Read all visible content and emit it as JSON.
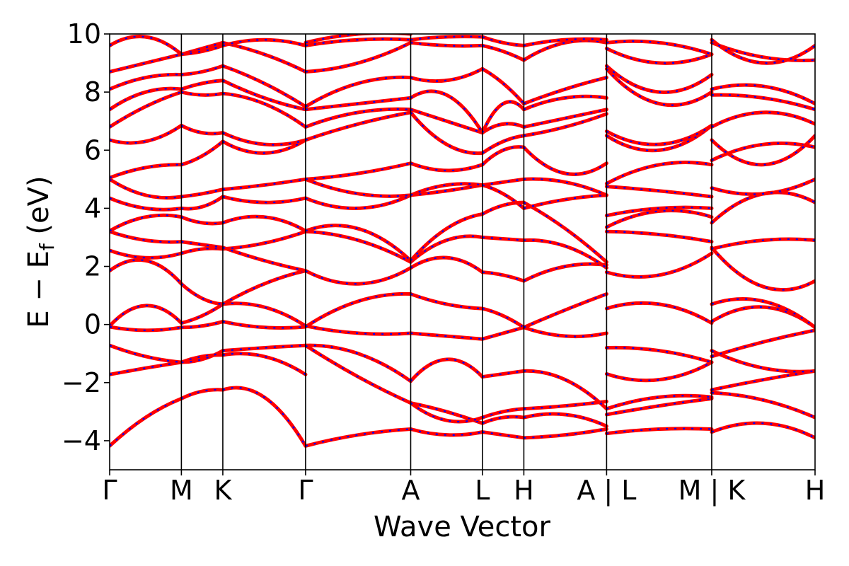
{
  "chart_data": {
    "type": "line",
    "title": "",
    "xlabel": "Wave Vector",
    "ylabel_parts": {
      "pre": "E − E",
      "sub": "f",
      "post": " (eV)"
    },
    "ylim": [
      -5,
      10
    ],
    "yticks": [
      -4,
      -2,
      0,
      2,
      4,
      6,
      8,
      10
    ],
    "ytick_labels": [
      "−4",
      "−2",
      "0",
      "2",
      "4",
      "6",
      "8",
      "10"
    ],
    "grid": false,
    "legend": "none",
    "colors": {
      "band_main": "#ff0000",
      "band_overlay": "#0000ff"
    },
    "high_symmetry_points": [
      {
        "label": "Γ",
        "x": 0.0
      },
      {
        "label": "M",
        "x": 0.722
      },
      {
        "label": "K",
        "x": 1.139
      },
      {
        "label": "Γ",
        "x": 1.972
      },
      {
        "label": "A",
        "x": 3.03
      },
      {
        "label": "L",
        "x": 3.752
      },
      {
        "label": "H",
        "x": 4.169
      },
      {
        "label": "A | L",
        "x": 5.002
      },
      {
        "label": "M | K",
        "x": 6.06
      },
      {
        "label": "H",
        "x": 7.1
      }
    ],
    "band_segments": [
      {
        "from": "Γ",
        "to": "M",
        "bands": [
          [
            -4.18,
            -3.2,
            -2.55
          ],
          [
            -1.72,
            -1.5,
            -1.3
          ],
          [
            -0.72,
            -1.1,
            -1.3
          ],
          [
            -0.05,
            0.65,
            0.05
          ],
          [
            -0.08,
            -0.2,
            -0.1
          ],
          [
            1.85,
            2.2,
            1.4
          ],
          [
            2.55,
            2.3,
            2.45
          ],
          [
            3.2,
            2.9,
            2.85
          ],
          [
            3.22,
            3.7,
            3.7
          ],
          [
            4.35,
            4.0,
            4.0
          ],
          [
            5.0,
            4.45,
            4.4
          ],
          [
            5.05,
            5.4,
            5.5
          ],
          [
            6.35,
            6.3,
            6.85
          ],
          [
            6.8,
            7.5,
            8.0
          ],
          [
            7.4,
            8.0,
            8.1
          ],
          [
            8.1,
            8.5,
            8.6
          ],
          [
            8.7,
            9.0,
            9.3
          ],
          [
            9.6,
            9.9,
            9.3
          ]
        ]
      },
      {
        "from": "M",
        "to": "K",
        "bands": [
          [
            -2.55,
            -2.3,
            -2.25
          ],
          [
            -1.3,
            -1.1,
            -1.05
          ],
          [
            -1.3,
            -1.2,
            -0.9
          ],
          [
            0.05,
            0.3,
            0.7
          ],
          [
            -0.1,
            -0.05,
            0.1
          ],
          [
            1.4,
            0.9,
            0.7
          ],
          [
            2.45,
            2.6,
            2.6
          ],
          [
            2.85,
            2.75,
            2.65
          ],
          [
            3.7,
            3.5,
            3.5
          ],
          [
            4.0,
            4.05,
            4.4
          ],
          [
            4.4,
            4.5,
            4.65
          ],
          [
            5.5,
            5.8,
            6.3
          ],
          [
            6.85,
            6.6,
            6.6
          ],
          [
            8.0,
            7.9,
            7.95
          ],
          [
            8.1,
            8.3,
            8.4
          ],
          [
            8.6,
            8.7,
            8.9
          ],
          [
            9.3,
            9.5,
            9.7
          ],
          [
            9.3,
            9.4,
            9.6
          ]
        ]
      },
      {
        "from": "K",
        "to": "Γ",
        "bands": [
          [
            -2.25,
            -2.5,
            -4.18
          ],
          [
            -1.05,
            -1.1,
            -1.72
          ],
          [
            -0.9,
            -0.8,
            -0.72
          ],
          [
            0.7,
            0.6,
            -0.05
          ],
          [
            0.1,
            -0.1,
            -0.08
          ],
          [
            0.7,
            1.4,
            1.85
          ],
          [
            2.6,
            2.8,
            3.2
          ],
          [
            2.65,
            2.2,
            1.85
          ],
          [
            3.5,
            3.7,
            3.22
          ],
          [
            4.4,
            4.2,
            4.35
          ],
          [
            4.65,
            4.8,
            5.0
          ],
          [
            6.3,
            5.9,
            6.35
          ],
          [
            6.6,
            6.2,
            6.35
          ],
          [
            7.95,
            7.6,
            6.8
          ],
          [
            8.4,
            7.8,
            7.4
          ],
          [
            8.9,
            8.3,
            7.5
          ],
          [
            9.7,
            9.3,
            8.7
          ],
          [
            9.6,
            9.8,
            9.6
          ]
        ]
      },
      {
        "from": "Γ",
        "to": "A",
        "bands": [
          [
            -4.18,
            -3.8,
            -3.6
          ],
          [
            -0.72,
            -1.0,
            -1.95
          ],
          [
            -0.72,
            -1.8,
            -2.7
          ],
          [
            -0.05,
            -0.3,
            -0.3
          ],
          [
            -0.08,
            0.8,
            1.05
          ],
          [
            1.85,
            1.4,
            1.95
          ],
          [
            3.2,
            2.9,
            2.15
          ],
          [
            3.22,
            3.3,
            2.2
          ],
          [
            4.35,
            4.0,
            4.45
          ],
          [
            5.0,
            4.5,
            4.45
          ],
          [
            5.0,
            5.2,
            5.55
          ],
          [
            6.35,
            6.9,
            7.3
          ],
          [
            6.8,
            7.3,
            7.4
          ],
          [
            7.4,
            7.6,
            7.8
          ],
          [
            7.5,
            8.3,
            8.5
          ],
          [
            8.7,
            9.0,
            9.7
          ],
          [
            9.6,
            9.8,
            9.8
          ],
          [
            9.7,
            10.0,
            10.0
          ]
        ]
      },
      {
        "from": "A",
        "to": "L",
        "bands": [
          [
            -3.6,
            -3.8,
            -3.7
          ],
          [
            -2.7,
            -3.0,
            -3.4
          ],
          [
            -2.7,
            -3.3,
            -3.2
          ],
          [
            -1.95,
            -1.2,
            -1.8
          ],
          [
            -0.3,
            -0.4,
            -0.5
          ],
          [
            1.05,
            0.7,
            0.55
          ],
          [
            1.95,
            2.3,
            1.8
          ],
          [
            2.15,
            2.9,
            3.0
          ],
          [
            2.2,
            3.3,
            3.8
          ],
          [
            4.45,
            4.6,
            4.8
          ],
          [
            4.45,
            4.8,
            4.8
          ],
          [
            5.55,
            5.3,
            5.5
          ],
          [
            7.3,
            6.2,
            5.9
          ],
          [
            7.4,
            7.0,
            6.6
          ],
          [
            7.8,
            7.9,
            6.6
          ],
          [
            8.5,
            8.4,
            8.8
          ],
          [
            9.7,
            9.6,
            9.6
          ],
          [
            9.8,
            9.9,
            9.9
          ]
        ]
      },
      {
        "from": "L",
        "to": "H",
        "bands": [
          [
            -3.7,
            -3.8,
            -3.9
          ],
          [
            -3.4,
            -3.2,
            -3.2
          ],
          [
            -3.2,
            -3.0,
            -2.9
          ],
          [
            -1.8,
            -1.7,
            -1.6
          ],
          [
            -0.5,
            -0.3,
            -0.1
          ],
          [
            0.55,
            0.3,
            -0.1
          ],
          [
            1.8,
            1.7,
            1.5
          ],
          [
            3.0,
            2.95,
            2.9
          ],
          [
            3.8,
            4.1,
            4.2
          ],
          [
            4.8,
            4.9,
            5.0
          ],
          [
            4.8,
            4.5,
            4.0
          ],
          [
            5.5,
            6.0,
            6.1
          ],
          [
            5.9,
            6.3,
            6.5
          ],
          [
            6.6,
            6.9,
            6.8
          ],
          [
            6.6,
            7.6,
            7.4
          ],
          [
            8.8,
            8.3,
            7.6
          ],
          [
            9.6,
            9.4,
            9.1
          ],
          [
            9.9,
            9.7,
            9.6
          ]
        ]
      },
      {
        "from": "H",
        "to": "A | L",
        "bands": [
          [
            -3.9,
            -3.8,
            -3.6
          ],
          [
            -3.2,
            -3.1,
            -3.5
          ],
          [
            -2.9,
            -2.8,
            -2.65
          ],
          [
            -1.6,
            -1.9,
            -2.9
          ],
          [
            -0.1,
            -0.4,
            -0.3
          ],
          [
            -0.1,
            0.5,
            1.05
          ],
          [
            1.5,
            2.0,
            2.05
          ],
          [
            2.9,
            2.7,
            1.95
          ],
          [
            4.2,
            3.3,
            2.15
          ],
          [
            5.0,
            4.9,
            4.45
          ],
          [
            4.0,
            4.3,
            4.45
          ],
          [
            6.1,
            5.2,
            5.55
          ],
          [
            6.5,
            6.8,
            7.25
          ],
          [
            6.8,
            7.1,
            7.4
          ],
          [
            7.4,
            7.8,
            7.8
          ],
          [
            7.6,
            8.1,
            8.5
          ],
          [
            9.1,
            9.7,
            9.7
          ],
          [
            9.6,
            9.8,
            9.8
          ]
        ]
      },
      {
        "from": "A | L",
        "to": "M | K",
        "bands": [
          [
            -3.75,
            -3.6,
            -3.6
          ],
          [
            -3.1,
            -2.8,
            -2.55
          ],
          [
            -2.9,
            -2.5,
            -2.5
          ],
          [
            -1.7,
            -1.9,
            -1.3
          ],
          [
            -0.8,
            -0.9,
            -1.3
          ],
          [
            0.55,
            0.7,
            0.05
          ],
          [
            1.8,
            1.7,
            2.45
          ],
          [
            3.2,
            3.1,
            2.85
          ],
          [
            3.35,
            3.9,
            3.7
          ],
          [
            3.75,
            4.0,
            4.0
          ],
          [
            4.75,
            4.6,
            4.4
          ],
          [
            4.85,
            5.5,
            5.5
          ],
          [
            6.5,
            6.0,
            6.85
          ],
          [
            6.65,
            6.2,
            6.85
          ],
          [
            8.8,
            7.6,
            8.0
          ],
          [
            8.9,
            8.0,
            8.6
          ],
          [
            9.5,
            9.0,
            9.3
          ],
          [
            9.7,
            9.7,
            9.3
          ]
        ]
      },
      {
        "from": "M | K",
        "to": "H",
        "bands": [
          [
            -3.7,
            -3.4,
            -3.9
          ],
          [
            -2.35,
            -2.6,
            -3.2
          ],
          [
            -2.25,
            -1.9,
            -1.6
          ],
          [
            -0.9,
            -1.5,
            -1.6
          ],
          [
            -1.1,
            -0.6,
            -0.2
          ],
          [
            0.1,
            0.6,
            -0.1
          ],
          [
            0.7,
            0.8,
            -0.1
          ],
          [
            2.6,
            2.9,
            2.9
          ],
          [
            2.65,
            1.3,
            1.5
          ],
          [
            3.5,
            4.5,
            4.2
          ],
          [
            4.7,
            4.5,
            5.0
          ],
          [
            5.65,
            6.2,
            6.1
          ],
          [
            6.35,
            5.5,
            6.5
          ],
          [
            6.8,
            7.3,
            6.9
          ],
          [
            7.9,
            7.8,
            7.4
          ],
          [
            8.1,
            8.2,
            7.6
          ],
          [
            9.7,
            9.2,
            9.1
          ],
          [
            9.8,
            9.0,
            9.6
          ]
        ]
      }
    ]
  }
}
